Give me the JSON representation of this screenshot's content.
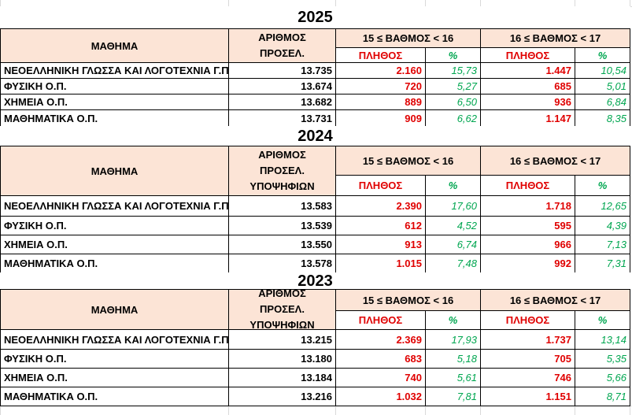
{
  "sections": [
    {
      "year": "2025",
      "header": {
        "subject": "ΜΑΘΗΜΑ",
        "applicants": [
          "ΑΡΙΘΜΟΣ",
          "ΠΡΟΣΕΛ."
        ],
        "range_1": "15 ≤ ΒΑΘΜΟΣ < 16",
        "range_2": "16 ≤ ΒΑΘΜΟΣ < 17",
        "count_1": "ΠΛΗΘΟΣ",
        "percent_1": "%",
        "count_2": "ΠΛΗΘΟΣ",
        "percent_2": "%"
      },
      "rows": [
        [
          "ΝΕΟΕΛΛΗΝΙΚΗ ΓΛΩΣΣΑ ΚΑΙ ΛΟΓΟΤΕΧΝΙΑ Γ.Π.",
          "13.735",
          "2.160",
          "15,73",
          "1.447",
          "10,54"
        ],
        [
          "ΦΥΣΙΚΗ Ο.Π.",
          "13.674",
          "720",
          "5,27",
          "685",
          "5,01"
        ],
        [
          "ΧΗΜΕΙΑ Ο.Π.",
          "13.682",
          "889",
          "6,50",
          "936",
          "6,84"
        ],
        [
          "ΜΑΘΗΜΑΤΙΚΑ Ο.Π.",
          "13.731",
          "909",
          "6,62",
          "1.147",
          "8,35"
        ]
      ]
    },
    {
      "year": "2024",
      "header": {
        "subject": "ΜΑΘΗΜΑ",
        "applicants": [
          "ΑΡΙΘΜΟΣ",
          "ΠΡΟΣΕΛ.",
          "ΥΠΟΨΗΦΙΩΝ"
        ],
        "range_1": "15 ≤ ΒΑΘΜΟΣ < 16",
        "range_2": "16 ≤ ΒΑΘΜΟΣ < 17",
        "count_1": "ΠΛΗΘΟΣ",
        "percent_1": "%",
        "count_2": "ΠΛΗΘΟΣ",
        "percent_2": "%"
      },
      "rows": [
        [
          "ΝΕΟΕΛΛΗΝΙΚΗ ΓΛΩΣΣΑ ΚΑΙ ΛΟΓΟΤΕΧΝΙΑ Γ.Π.",
          "13.583",
          "2.390",
          "17,60",
          "1.718",
          "12,65"
        ],
        [
          "ΦΥΣΙΚΗ Ο.Π.",
          "13.539",
          "612",
          "4,52",
          "595",
          "4,39"
        ],
        [
          "ΧΗΜΕΙΑ Ο.Π.",
          "13.550",
          "913",
          "6,74",
          "966",
          "7,13"
        ],
        [
          "ΜΑΘΗΜΑΤΙΚΑ Ο.Π.",
          "13.578",
          "1.015",
          "7,48",
          "992",
          "7,31"
        ]
      ]
    },
    {
      "year": "2023",
      "header": {
        "subject": "ΜΑΘΗΜΑ",
        "applicants": [
          "ΑΡΙΘΜΟΣ",
          "ΠΡΟΣΕΛ.",
          "ΥΠΟΨΗΦΙΩΝ"
        ],
        "range_1": "15 ≤ ΒΑΘΜΟΣ < 16",
        "range_2": "16 ≤ ΒΑΘΜΟΣ < 17",
        "count_1": "ΠΛΗΘΟΣ",
        "percent_1": "%",
        "count_2": "ΠΛΗΘΟΣ",
        "percent_2": "%"
      },
      "rows": [
        [
          "ΝΕΟΕΛΛΗΝΙΚΗ ΓΛΩΣΣΑ ΚΑΙ ΛΟΓΟΤΕΧΝΙΑ Γ.Π.",
          "13.215",
          "2.369",
          "17,93",
          "1.737",
          "13,14"
        ],
        [
          "ΦΥΣΙΚΗ Ο.Π.",
          "13.180",
          "683",
          "5,18",
          "705",
          "5,35"
        ],
        [
          "ΧΗΜΕΙΑ Ο.Π.",
          "13.184",
          "740",
          "5,61",
          "746",
          "5,66"
        ],
        [
          "ΜΑΘΗΜΑΤΙΚΑ Ο.Π.",
          "13.216",
          "1.032",
          "7,81",
          "1.151",
          "8,71"
        ]
      ]
    }
  ]
}
